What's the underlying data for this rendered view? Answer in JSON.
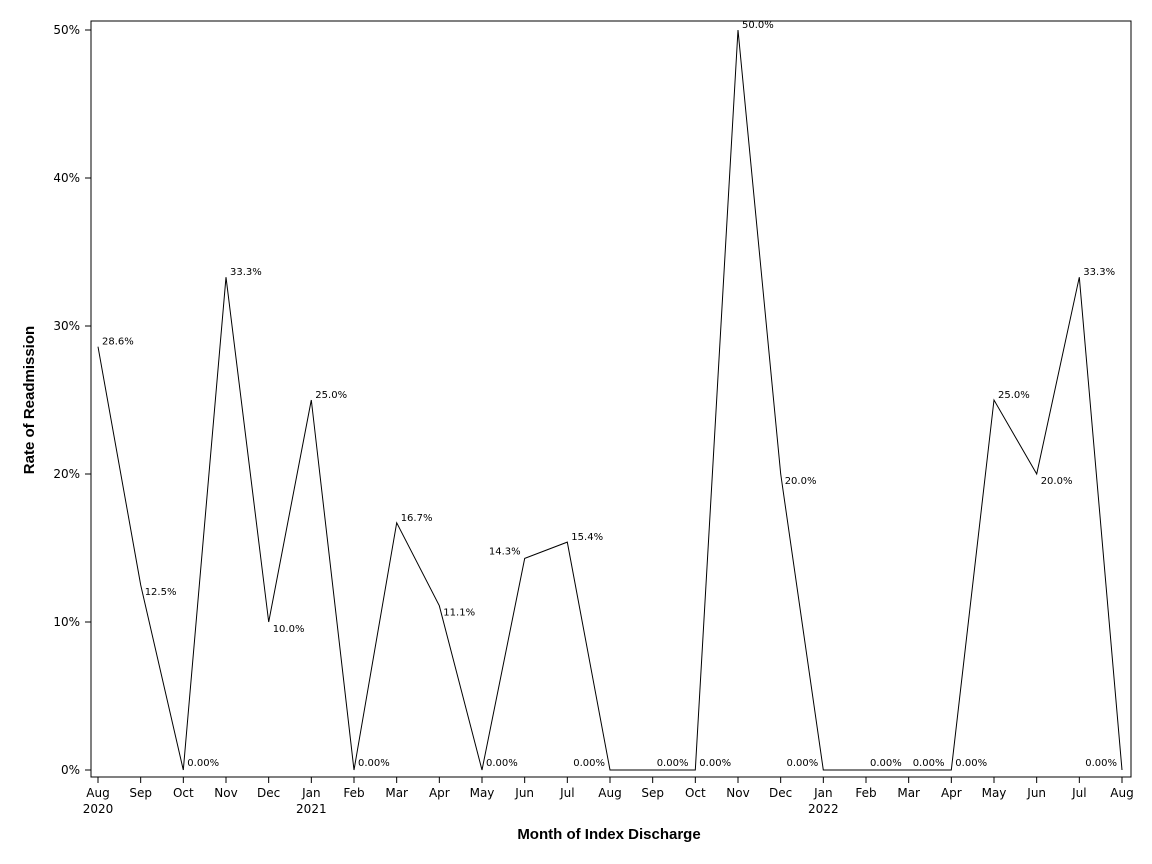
{
  "chart_data": {
    "type": "line",
    "title": "",
    "xlabel": "Month of Index Discharge",
    "ylabel": "Rate of Readmission",
    "ylim": [
      0,
      50
    ],
    "y_ticks": [
      "0%",
      "10%",
      "20%",
      "30%",
      "40%",
      "50%"
    ],
    "x_ticks": [
      {
        "month": "Aug",
        "year": "2020"
      },
      {
        "month": "Sep",
        "year": ""
      },
      {
        "month": "Oct",
        "year": ""
      },
      {
        "month": "Nov",
        "year": ""
      },
      {
        "month": "Dec",
        "year": ""
      },
      {
        "month": "Jan",
        "year": "2021"
      },
      {
        "month": "Feb",
        "year": ""
      },
      {
        "month": "Mar",
        "year": ""
      },
      {
        "month": "Apr",
        "year": ""
      },
      {
        "month": "May",
        "year": ""
      },
      {
        "month": "Jun",
        "year": ""
      },
      {
        "month": "Jul",
        "year": ""
      },
      {
        "month": "Aug",
        "year": ""
      },
      {
        "month": "Sep",
        "year": ""
      },
      {
        "month": "Oct",
        "year": ""
      },
      {
        "month": "Nov",
        "year": ""
      },
      {
        "month": "Dec",
        "year": ""
      },
      {
        "month": "Jan",
        "year": "2022"
      },
      {
        "month": "Feb",
        "year": ""
      },
      {
        "month": "Mar",
        "year": ""
      },
      {
        "month": "Apr",
        "year": ""
      },
      {
        "month": "May",
        "year": ""
      },
      {
        "month": "Jun",
        "year": ""
      },
      {
        "month": "Jul",
        "year": ""
      },
      {
        "month": "Aug",
        "year": ""
      }
    ],
    "series": [
      {
        "x": [
          "2020-08",
          "2020-09",
          "2020-10",
          "2020-11",
          "2020-12",
          "2021-01",
          "2021-02",
          "2021-03",
          "2021-04",
          "2021-05",
          "2021-06",
          "2021-07",
          "2021-08",
          "2021-09",
          "2021-10",
          "2021-11",
          "2021-12",
          "2022-01",
          "2022-02",
          "2022-03",
          "2022-04",
          "2022-05",
          "2022-06",
          "2022-07",
          "2022-08"
        ],
        "values": [
          28.6,
          12.5,
          0,
          33.3,
          10.0,
          25.0,
          0,
          16.7,
          11.1,
          0,
          14.3,
          15.4,
          0,
          0,
          0,
          50.0,
          20.0,
          0,
          0,
          0,
          0,
          25.0,
          20.0,
          33.3,
          0
        ],
        "labels": [
          "28.6%",
          "12.5%",
          "0.00%",
          "33.3%",
          "10.0%",
          "25.0%",
          "0.00%",
          "16.7%",
          "11.1%",
          "0.00%",
          "14.3%",
          "15.4%",
          "0.00%",
          "0.00%",
          "0.00%",
          "50.0%",
          "20.0%",
          "0.00%",
          "0.00%",
          "0.00%",
          "0.00%",
          "25.0%",
          "20.0%",
          "33.3%",
          "0.00%"
        ],
        "color": "#000000"
      }
    ],
    "grid": false,
    "legend": "none"
  }
}
